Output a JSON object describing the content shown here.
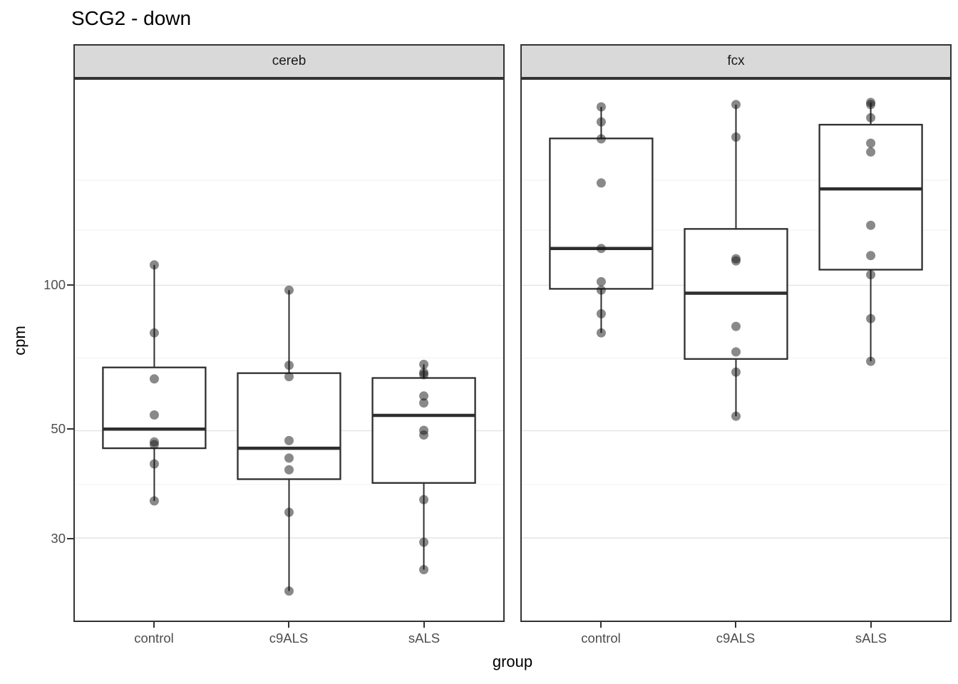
{
  "chart_data": {
    "type": "boxplot",
    "title": "SCG2 - down",
    "xlabel": "group",
    "ylabel": "cpm",
    "categories": [
      "control",
      "c9ALS",
      "sALS"
    ],
    "y_scale": {
      "type": "log10",
      "domain": [
        20.1,
        268
      ],
      "major_gridlines": [
        100,
        50,
        30
      ],
      "minor_gridlines": [
        165,
        130,
        70.7,
        38.7
      ],
      "tick_labels": [
        "100",
        "50",
        "30"
      ]
    },
    "facets": [
      {
        "label": "cereb",
        "groups": [
          {
            "category": "control",
            "whisker_low": 35.8,
            "q1": 46.0,
            "median": 50.4,
            "q3": 67.6,
            "whisker_high": 110.2,
            "points": [
              110.2,
              79.7,
              64.0,
              53.9,
              47.4,
              46.8,
              42.7,
              35.8
            ]
          },
          {
            "category": "c9ALS",
            "whisker_low": 23.3,
            "q1": 39.7,
            "median": 46.0,
            "q3": 65.8,
            "whisker_high": 97.7,
            "points": [
              97.7,
              68.3,
              64.7,
              47.7,
              43.9,
              41.5,
              33.9,
              23.3
            ]
          },
          {
            "category": "sALS",
            "whisker_low": 25.8,
            "q1": 39.0,
            "median": 53.8,
            "q3": 64.3,
            "whisker_high": 68.6,
            "points": [
              68.6,
              66.0,
              65.3,
              59.0,
              57.1,
              50.1,
              49.0,
              36.0,
              29.4,
              25.8
            ]
          }
        ]
      },
      {
        "label": "fcx",
        "groups": [
          {
            "category": "control",
            "whisker_low": 79.7,
            "q1": 98.3,
            "median": 119.2,
            "q3": 201.3,
            "whisker_high": 234.0,
            "points": [
              234.0,
              217.8,
              200.9,
              162.8,
              119.2,
              101.7,
              97.7,
              87.3,
              79.7
            ]
          },
          {
            "category": "c9ALS",
            "whisker_low": 53.6,
            "q1": 70.4,
            "median": 96.3,
            "q3": 130.8,
            "whisker_high": 236.6,
            "points": [
              236.6,
              202.6,
              113.5,
              112.3,
              82.2,
              72.8,
              66.1,
              53.6
            ]
          },
          {
            "category": "sALS",
            "whisker_low": 69.6,
            "q1": 107.7,
            "median": 158.3,
            "q3": 214.9,
            "whisker_high": 239.0,
            "points": [
              239.0,
              236.5,
              222.1,
              196.8,
              188.7,
              133.1,
              115.2,
              105.2,
              85.3,
              69.6
            ]
          }
        ]
      }
    ],
    "style": {
      "point_color": "#141414",
      "point_opacity": 0.5,
      "point_radius": 6.5,
      "box_stroke": "#2e2e2e",
      "box_fill": "#ffffff",
      "grid_major_color": "#e3e3e3",
      "grid_minor_color": "#f0f0f0",
      "panel_border_color": "#333333",
      "strip_fill": "#d9d9d9",
      "axis_text_color": "#4d4d4d"
    }
  }
}
